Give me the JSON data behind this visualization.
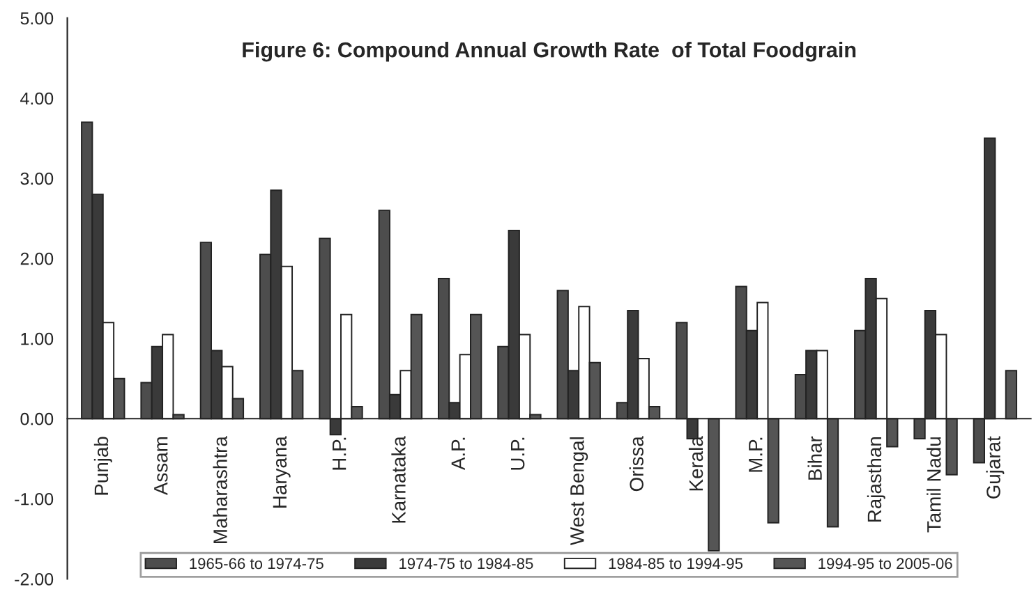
{
  "chart_data": {
    "type": "bar",
    "title": "Figure 6: Compound Annual Growth Rate  of Total Foodgrain",
    "categories": [
      "Punjab",
      "Assam",
      "Maharashtra",
      "Haryana",
      "H.P.",
      "Karnataka",
      "A.P.",
      "U.P.",
      "West Bengal",
      "Orissa",
      "Kerala",
      "M.P.",
      "Bihar",
      "Rajasthan",
      "Tamil Nadu",
      "Gujarat"
    ],
    "series": [
      {
        "name": "1965-66 to 1974-75",
        "color": "#4d4d4d",
        "values": [
          3.7,
          0.45,
          2.2,
          2.05,
          2.25,
          2.6,
          1.75,
          0.9,
          1.6,
          0.2,
          1.2,
          1.65,
          0.55,
          1.1,
          -0.25,
          -0.55
        ]
      },
      {
        "name": "1974-75 to 1984-85",
        "color": "#3a3a3a",
        "values": [
          2.8,
          0.9,
          0.85,
          2.85,
          -0.2,
          0.3,
          0.2,
          2.35,
          0.6,
          1.35,
          -0.25,
          1.1,
          0.85,
          1.75,
          1.35,
          3.5
        ]
      },
      {
        "name": "1984-85 to 1994-95",
        "color": "#ffffff",
        "values": [
          1.2,
          1.05,
          0.65,
          1.9,
          1.3,
          0.6,
          0.8,
          1.05,
          1.4,
          0.75,
          null,
          1.45,
          0.85,
          1.5,
          1.05,
          null
        ]
      },
      {
        "name": "1994-95 to 2005-06",
        "color": "#555555",
        "values": [
          0.5,
          0.05,
          0.25,
          0.6,
          0.15,
          1.3,
          1.3,
          0.05,
          0.7,
          0.15,
          -1.65,
          -1.3,
          -1.35,
          -0.35,
          -0.7,
          0.6
        ]
      }
    ],
    "ylim": [
      -2,
      5
    ],
    "yticks": [
      {
        "value": -2,
        "label": "-2.00"
      },
      {
        "value": -1,
        "label": "-1.00"
      },
      {
        "value": 0,
        "label": "0.00"
      },
      {
        "value": 1,
        "label": "1.00"
      },
      {
        "value": 2,
        "label": "2.00"
      },
      {
        "value": 3,
        "label": "3.00"
      },
      {
        "value": 4,
        "label": "4.00"
      },
      {
        "value": 5,
        "label": "5.00"
      }
    ],
    "legend": "bottom",
    "grid": false
  }
}
